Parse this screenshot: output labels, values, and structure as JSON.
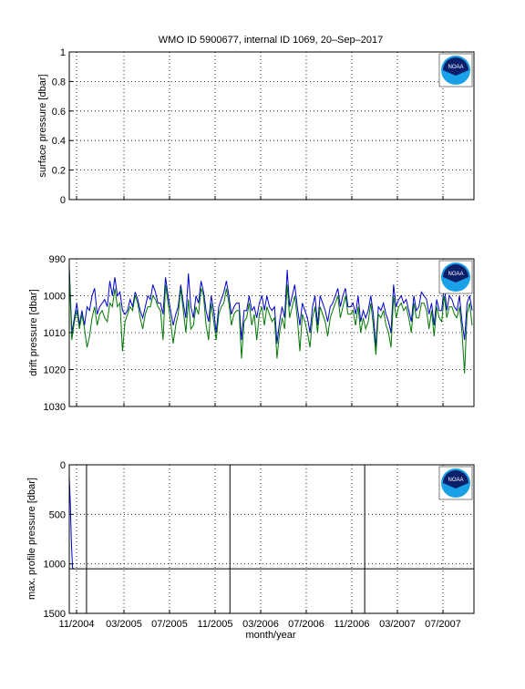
{
  "title": "WMO ID 5900677, internal ID 1069, 20–Sep–2017",
  "xlabel": "month/year",
  "x_ticks": [
    "11/2004",
    "03/2005",
    "07/2005",
    "11/2005",
    "03/2006",
    "07/2006",
    "11/2006",
    "03/2007",
    "07/2007"
  ],
  "logo_text": "NOAA",
  "colors": {
    "series_blue": "#0000cc",
    "series_green": "#007700",
    "vline": "#000000",
    "hline": "#000000"
  },
  "chart_data": [
    {
      "type": "line",
      "ylabel": "surface pressure [dbar]",
      "ylim": [
        0,
        1
      ],
      "yticks": [
        "0",
        "0.2",
        "0.4",
        "0.6",
        "0.8",
        "1"
      ],
      "grid": true,
      "series": []
    },
    {
      "type": "line",
      "ylabel": "drift pressure [dbar]",
      "ylim": [
        990,
        1030
      ],
      "y_reversed": true,
      "yticks": [
        "990",
        "1000",
        "1010",
        "1020",
        "1030"
      ],
      "grid": true,
      "x_range": [
        "2004-10-20",
        "2007-11-20"
      ],
      "series": [
        {
          "color": "#0000cc",
          "values": [
            992,
            1010,
            1006,
            1002,
            1008,
            1004,
            1008,
            1003,
            1004,
            1000,
            998,
            1005,
            1003,
            1002,
            1001,
            1003,
            996,
            1000,
            995,
            1000,
            999,
            1004,
            1005,
            1004,
            1001,
            1003,
            999,
            1001,
            1004,
            1006,
            1003,
            1000,
            1001,
            997,
            999,
            1002,
            1002,
            1005,
            995,
            1000,
            1004,
            1008,
            1005,
            1003,
            997,
            1002,
            1006,
            994,
            1003,
            1006,
            1000,
            1002,
            996,
            999,
            1004,
            1007,
            1000,
            1004,
            1010,
            1003,
            1001,
            999,
            996,
            1000,
            1005,
            1003,
            1002,
            1002,
            1012,
            1004,
            1004,
            1000,
            1004,
            1003,
            1006,
            1002,
            1000,
            1004,
            1000,
            1003,
            1004,
            1003,
            1013,
            1007,
            1003,
            1006,
            993,
            1003,
            1000,
            997,
            1003,
            1008,
            1002,
            1004,
            1006,
            1010,
            1003,
            1000,
            1008,
            1000,
            1002,
            1004,
            1007,
            1003,
            1002,
            1000,
            998,
            1003,
            1000,
            998,
            1003,
            1003,
            1002,
            1005,
            1000,
            1007,
            1004,
            1006,
            1004,
            1000,
            1005,
            1014,
            1003,
            1004,
            1002,
            1005,
            1007,
            1010,
            997,
            1003,
            1001,
            1000,
            1002,
            1001,
            1004,
            1007,
            1000,
            1004,
            1003,
            999,
            1000,
            1001,
            1005,
            1002,
            1008,
            1001,
            1004,
            1004,
            997,
            1004,
            1000,
            1001,
            1003,
            1004,
            1000,
            1007,
            1012,
            1002,
            1000,
            1004
          ]
        },
        {
          "color": "#007700",
          "values": [
            993,
            1012,
            1007,
            1004,
            1009,
            1005,
            1009,
            1014,
            1011,
            1006,
            1003,
            1008,
            1005,
            1004,
            1006,
            1007,
            1002,
            1003,
            998,
            1003,
            1002,
            1015,
            1007,
            1005,
            1003,
            1004,
            1000,
            1002,
            1006,
            1009,
            1005,
            1003,
            1003,
            1000,
            1001,
            1003,
            1004,
            1012,
            997,
            1002,
            1007,
            1013,
            1008,
            1005,
            998,
            1004,
            1010,
            1001,
            1009,
            1008,
            1003,
            1005,
            998,
            1000,
            1008,
            1012,
            1002,
            1007,
            1012,
            1005,
            1003,
            1002,
            998,
            1002,
            1008,
            1005,
            1004,
            1004,
            1017,
            1007,
            1006,
            1002,
            1008,
            1005,
            1012,
            1005,
            1003,
            1008,
            1003,
            1005,
            1007,
            1006,
            1017,
            1010,
            1006,
            1009,
            997,
            1006,
            1003,
            1000,
            1006,
            1015,
            1005,
            1007,
            1010,
            1014,
            1006,
            1003,
            1010,
            1003,
            1005,
            1007,
            1011,
            1006,
            1004,
            1002,
            1000,
            1006,
            1003,
            1000,
            1005,
            1005,
            1004,
            1008,
            1003,
            1010,
            1006,
            1009,
            1007,
            1002,
            1008,
            1016,
            1005,
            1006,
            1004,
            1008,
            1010,
            1014,
            1000,
            1006,
            1003,
            1002,
            1004,
            1003,
            1006,
            1010,
            1002,
            1006,
            1006,
            1002,
            1002,
            1004,
            1009,
            1004,
            1011,
            1003,
            1006,
            1007,
            1000,
            1006,
            1003,
            1003,
            1005,
            1006,
            1003,
            1010,
            1021,
            1005,
            1002,
            1008
          ]
        }
      ]
    },
    {
      "type": "line",
      "ylabel": "max. profile pressure [dbar]",
      "ylim": [
        0,
        1500
      ],
      "y_reversed": true,
      "yticks": [
        "0",
        "500",
        "1000",
        "1500"
      ],
      "grid": true,
      "x_range": [
        "2004-10-20",
        "2007-11-20"
      ],
      "reference_line": 1050,
      "vertical_lines": [
        "2004-12-07",
        "2006-01-10",
        "2007-01-20"
      ],
      "series": [
        {
          "color": "#0000cc",
          "values": [
            120,
            400,
            800,
            1040,
            1050
          ]
        }
      ]
    }
  ]
}
